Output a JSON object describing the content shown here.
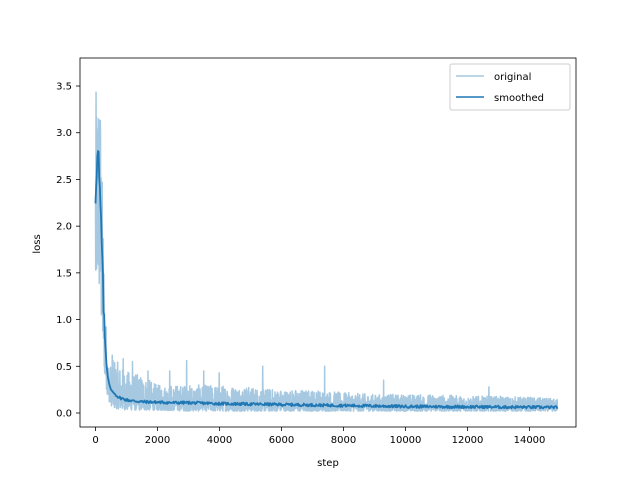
{
  "chart_data": {
    "type": "line",
    "title": "",
    "xlabel": "step",
    "ylabel": "loss",
    "xlim": [
      -500,
      15500
    ],
    "ylim": [
      -0.15,
      3.8
    ],
    "xticks": [
      0,
      2000,
      4000,
      6000,
      8000,
      10000,
      12000,
      14000
    ],
    "yticks": [
      0.0,
      0.5,
      1.0,
      1.5,
      2.0,
      2.5,
      3.0,
      3.5
    ],
    "xtick_labels": [
      "0",
      "2000",
      "4000",
      "6000",
      "8000",
      "10000",
      "12000",
      "14000"
    ],
    "ytick_labels": [
      "0.0",
      "0.5",
      "1.0",
      "1.5",
      "2.0",
      "2.5",
      "3.0",
      "3.5"
    ],
    "legend_position": "top-right",
    "grid": false,
    "series": [
      {
        "name": "original",
        "color": "#a6c8e0",
        "envelope": {
          "x": [
            0,
            50,
            100,
            150,
            200,
            250,
            300,
            400,
            500,
            600,
            800,
            1000,
            1500,
            2000,
            3000,
            4000,
            5000,
            6000,
            7000,
            8000,
            9000,
            10000,
            11000,
            12000,
            13000,
            14000,
            14900
          ],
          "low": [
            1.2,
            1.5,
            1.4,
            1.2,
            0.9,
            0.6,
            0.35,
            0.15,
            0.08,
            0.05,
            0.04,
            0.03,
            0.03,
            0.03,
            0.02,
            0.02,
            0.02,
            0.02,
            0.02,
            0.02,
            0.02,
            0.02,
            0.02,
            0.02,
            0.02,
            0.02,
            0.02
          ],
          "high": [
            3.4,
            3.6,
            3.6,
            3.5,
            2.8,
            2.0,
            1.2,
            0.6,
            0.5,
            0.6,
            0.5,
            0.45,
            0.4,
            0.3,
            0.3,
            0.3,
            0.28,
            0.25,
            0.25,
            0.22,
            0.2,
            0.2,
            0.2,
            0.18,
            0.18,
            0.17,
            0.15
          ]
        },
        "spikes": [
          {
            "x": 550,
            "y": 0.62
          },
          {
            "x": 900,
            "y": 0.58
          },
          {
            "x": 1200,
            "y": 0.55
          },
          {
            "x": 1700,
            "y": 0.45
          },
          {
            "x": 2400,
            "y": 0.45
          },
          {
            "x": 2950,
            "y": 0.56
          },
          {
            "x": 3500,
            "y": 0.45
          },
          {
            "x": 4000,
            "y": 0.43
          },
          {
            "x": 5400,
            "y": 0.5
          },
          {
            "x": 7400,
            "y": 0.5
          },
          {
            "x": 9300,
            "y": 0.35
          },
          {
            "x": 12700,
            "y": 0.28
          }
        ]
      },
      {
        "name": "smoothed",
        "color": "#1f77b4",
        "x": [
          0,
          30,
          60,
          90,
          110,
          130,
          160,
          190,
          220,
          250,
          280,
          320,
          360,
          400,
          450,
          500,
          600,
          700,
          800,
          1000,
          1200,
          1500,
          2000,
          2500,
          3000,
          3500,
          4000,
          5000,
          6000,
          7000,
          8000,
          9000,
          10000,
          11000,
          12000,
          13000,
          14000,
          14900
        ],
        "values": [
          2.3,
          2.6,
          2.7,
          2.85,
          2.6,
          2.4,
          2.2,
          1.95,
          1.6,
          1.25,
          0.95,
          0.7,
          0.5,
          0.38,
          0.3,
          0.25,
          0.21,
          0.18,
          0.16,
          0.14,
          0.13,
          0.12,
          0.115,
          0.11,
          0.11,
          0.105,
          0.1,
          0.095,
          0.09,
          0.085,
          0.08,
          0.075,
          0.07,
          0.068,
          0.066,
          0.064,
          0.062,
          0.06
        ]
      }
    ]
  }
}
